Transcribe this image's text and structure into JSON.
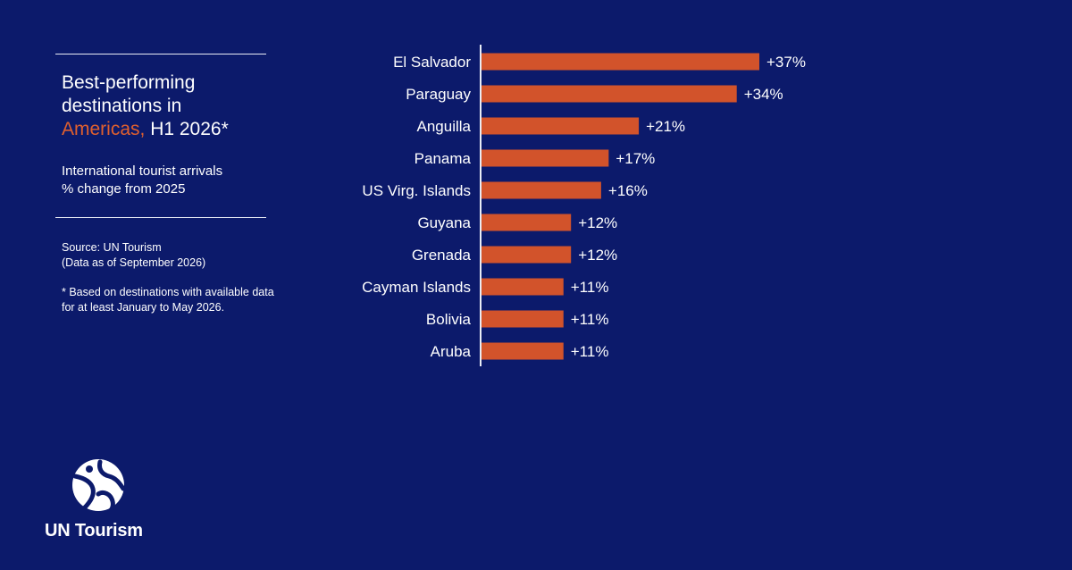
{
  "panel": {
    "title_line1": "Best-performing",
    "title_line2": "destinations in",
    "title_accent": "Americas,",
    "title_rest": " H1 2026*",
    "subtitle_line1": "International tourist arrivals",
    "subtitle_line2": "% change from 2025",
    "source_line1": "Source: UN Tourism",
    "source_line2": "(Data as of September 2026)",
    "footnote_line1": "* Based on destinations with available data",
    "footnote_line2": "for at least January to May 2026.",
    "logo_text": "UN Tourism"
  },
  "colors": {
    "background": "#0c1a6b",
    "bar": "#d2532b",
    "accent_text": "#e0602e",
    "text": "#ffffff"
  },
  "chart_data": {
    "type": "bar",
    "orientation": "horizontal",
    "categories": [
      "El Salvador",
      "Paraguay",
      "Anguilla",
      "Panama",
      "US Virg. Islands",
      "Guyana",
      "Grenada",
      "Cayman Islands",
      "Bolivia",
      "Aruba"
    ],
    "values": [
      37,
      34,
      21,
      17,
      16,
      12,
      12,
      11,
      11,
      11
    ],
    "labels": [
      "+37%",
      "+34%",
      "+21%",
      "+17%",
      "+16%",
      "+12%",
      "+12%",
      "+11%",
      "+11%",
      "+11%"
    ],
    "title": "Best-performing destinations in Americas, H1 2026*",
    "xlabel": "",
    "ylabel": "",
    "grid": false,
    "legend": "none"
  }
}
